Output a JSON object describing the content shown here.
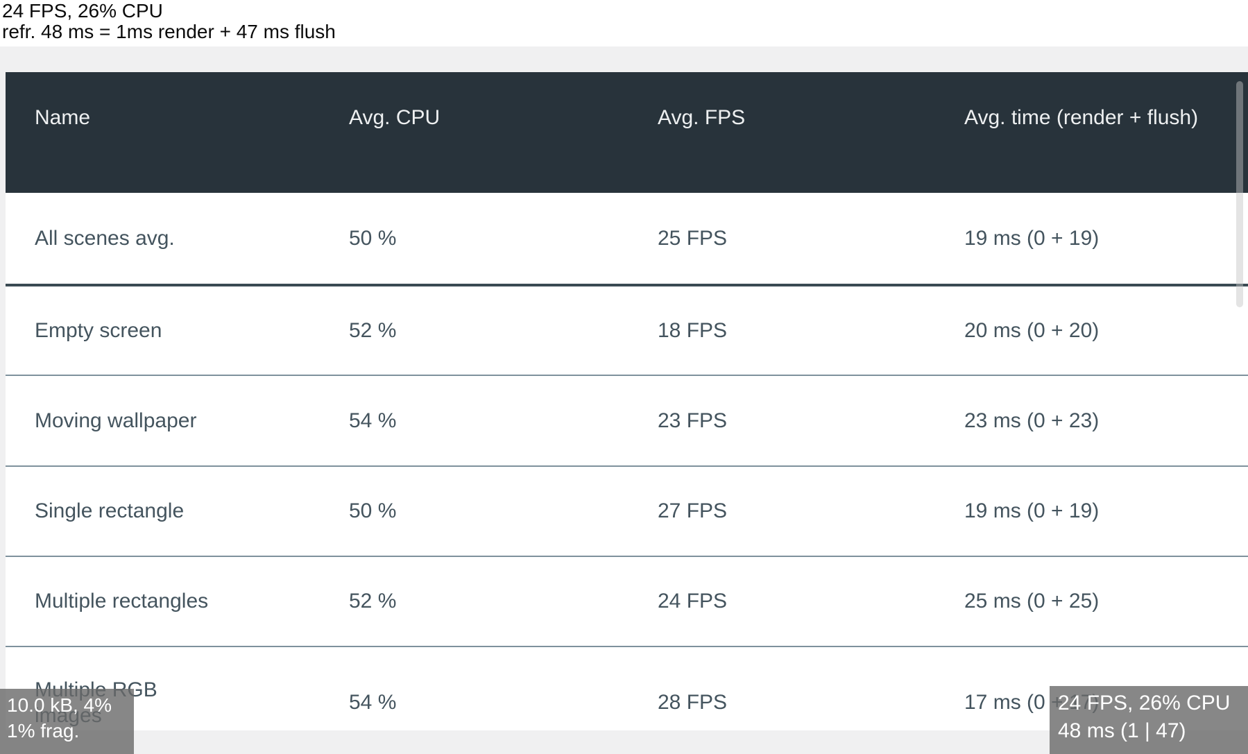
{
  "hud": {
    "top_left": {
      "line1": "24 FPS, 26% CPU",
      "line2": "refr. 48 ms = 1ms render + 47 ms flush"
    },
    "bottom_left": {
      "line1": "10.0 kB, 4%",
      "line2": "1% frag."
    },
    "bottom_right": {
      "line1": "24 FPS, 26% CPU",
      "line2": "48 ms (1 | 47)"
    }
  },
  "table": {
    "columns": [
      "Name",
      "Avg. CPU",
      "Avg. FPS",
      "Avg. time (render + flush)"
    ],
    "rows": [
      {
        "name": "All scenes avg.",
        "cpu": "50 %",
        "fps": "25 FPS",
        "time": "19 ms (0 + 19)"
      },
      {
        "name": "Empty screen",
        "cpu": "52 %",
        "fps": "18 FPS",
        "time": "20 ms (0 + 20)"
      },
      {
        "name": "Moving wallpaper",
        "cpu": "54 %",
        "fps": "23 FPS",
        "time": "23 ms (0 + 23)"
      },
      {
        "name": "Single rectangle",
        "cpu": "50 %",
        "fps": "27 FPS",
        "time": "19 ms (0 + 19)"
      },
      {
        "name": "Multiple rectangles",
        "cpu": "52 %",
        "fps": "24 FPS",
        "time": "25 ms (0 + 25)"
      },
      {
        "name": "Multiple RGB images",
        "cpu": "54 %",
        "fps": "28 FPS",
        "time": "17 ms (0 + 17)"
      }
    ]
  },
  "colors": {
    "header_bg": "#28333b",
    "header_text": "#eef0f1",
    "row_text": "#44545e",
    "row_bg": "#ffffff",
    "divider": "#7e919c",
    "strong_divider": "#3a4a53",
    "page_bg": "#f0f0f1",
    "hud_text": "#0b0b0b",
    "overlay_bg": "rgba(105,105,105,0.8)",
    "overlay_text": "#ffffff"
  }
}
